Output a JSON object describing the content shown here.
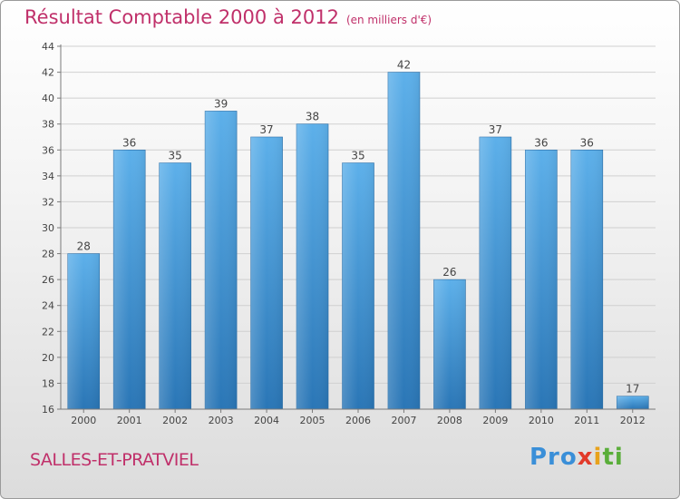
{
  "header": {
    "title": "Résultat Comptable 2000 à 2012",
    "unit_note": "(en milliers d'€)"
  },
  "footer": {
    "commune": "SALLES-ET-PRATVIEL",
    "logo_parts": [
      "Pro",
      "x",
      "i",
      "ti"
    ]
  },
  "colors": {
    "title": "#c0306a",
    "bar_top": "#5db0ea",
    "bar_bottom": "#2a76b6",
    "axis": "#7a7a7a",
    "grid": "#d0d0d0"
  },
  "chart_data": {
    "type": "bar",
    "title": "Résultat Comptable 2000 à 2012",
    "subtitle": "(en milliers d'€)",
    "xlabel": "",
    "ylabel": "",
    "categories": [
      "2000",
      "2001",
      "2002",
      "2003",
      "2004",
      "2005",
      "2006",
      "2007",
      "2008",
      "2009",
      "2010",
      "2011",
      "2012"
    ],
    "values": [
      28,
      36,
      35,
      39,
      37,
      38,
      35,
      42,
      26,
      37,
      36,
      36,
      17
    ],
    "ylim": [
      16,
      44
    ],
    "yticks": [
      16,
      18,
      20,
      22,
      24,
      26,
      28,
      30,
      32,
      34,
      36,
      38,
      40,
      42,
      44
    ],
    "grid": true,
    "data_labels": true
  }
}
